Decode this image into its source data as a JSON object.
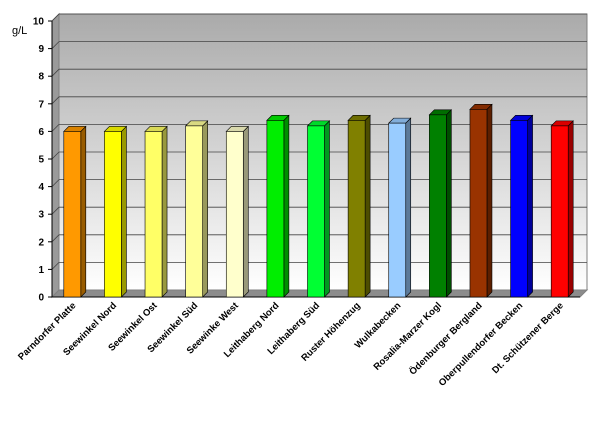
{
  "chart_data": {
    "type": "bar",
    "ylabel": "g/L",
    "ylim": [
      0,
      10
    ],
    "yticks": [
      0,
      1,
      2,
      3,
      4,
      5,
      6,
      7,
      8,
      9,
      10
    ],
    "grid": true,
    "categories": [
      "Parndorfer Platte",
      "Seewinkel Nord",
      "Seewinkel Ost",
      "Seewinkel Süd",
      "Seewinke West",
      "Leithaberg Nord",
      "Leithaberg Süd",
      "Ruster Höhenzug",
      "Wulkabecken",
      "Rosalia-Marzer Kogl",
      "Ödenburger Bergland",
      "Oberpullendorfer Becken",
      "Dt. Schützener Berge"
    ],
    "values": [
      6.0,
      6.0,
      6.0,
      6.2,
      6.0,
      6.4,
      6.2,
      6.4,
      6.3,
      6.6,
      6.8,
      6.4,
      6.2
    ],
    "colors": [
      "#ff9900",
      "#ffff00",
      "#ffff66",
      "#ffff99",
      "#ffffcc",
      "#00ee00",
      "#00ff33",
      "#808000",
      "#99ccff",
      "#008000",
      "#993300",
      "#0000ff",
      "#ff0000"
    ]
  }
}
